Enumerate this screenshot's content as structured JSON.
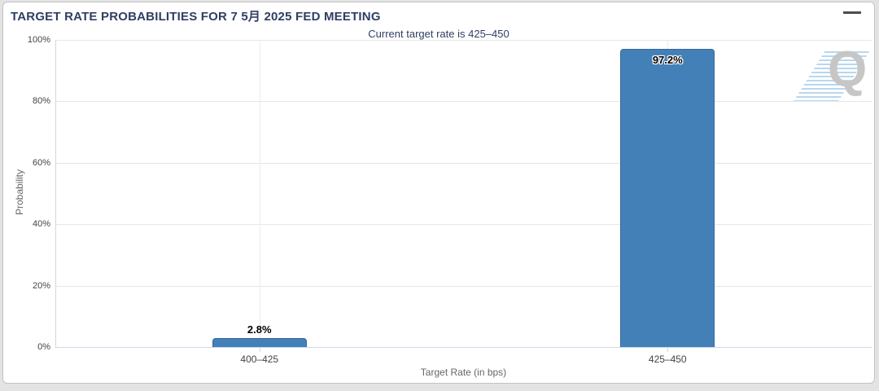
{
  "watermark": {
    "letter": "Q"
  },
  "menu": {
    "icon": "hamburger-menu-icon"
  },
  "chart_data": {
    "type": "bar",
    "title": "TARGET RATE PROBABILITIES FOR 7 5月 2025 FED MEETING",
    "subtitle": "Current target rate is 425–450",
    "categories": [
      "400–425",
      "425–450"
    ],
    "values": [
      2.8,
      97.2
    ],
    "data_labels": [
      "2.8%",
      "97.2%"
    ],
    "xlabel": "Target Rate (in bps)",
    "ylabel": "Probability",
    "ylim": [
      0,
      100
    ],
    "ytick_interval": 20,
    "ytick_labels": [
      "0%",
      "20%",
      "40%",
      "60%",
      "80%",
      "100%"
    ],
    "grid": true,
    "legend": false,
    "bar_color": "#4380b8",
    "bar_border_color": "#356a9e",
    "title_color": "#2e3f63",
    "background_color": "#ffffff"
  }
}
